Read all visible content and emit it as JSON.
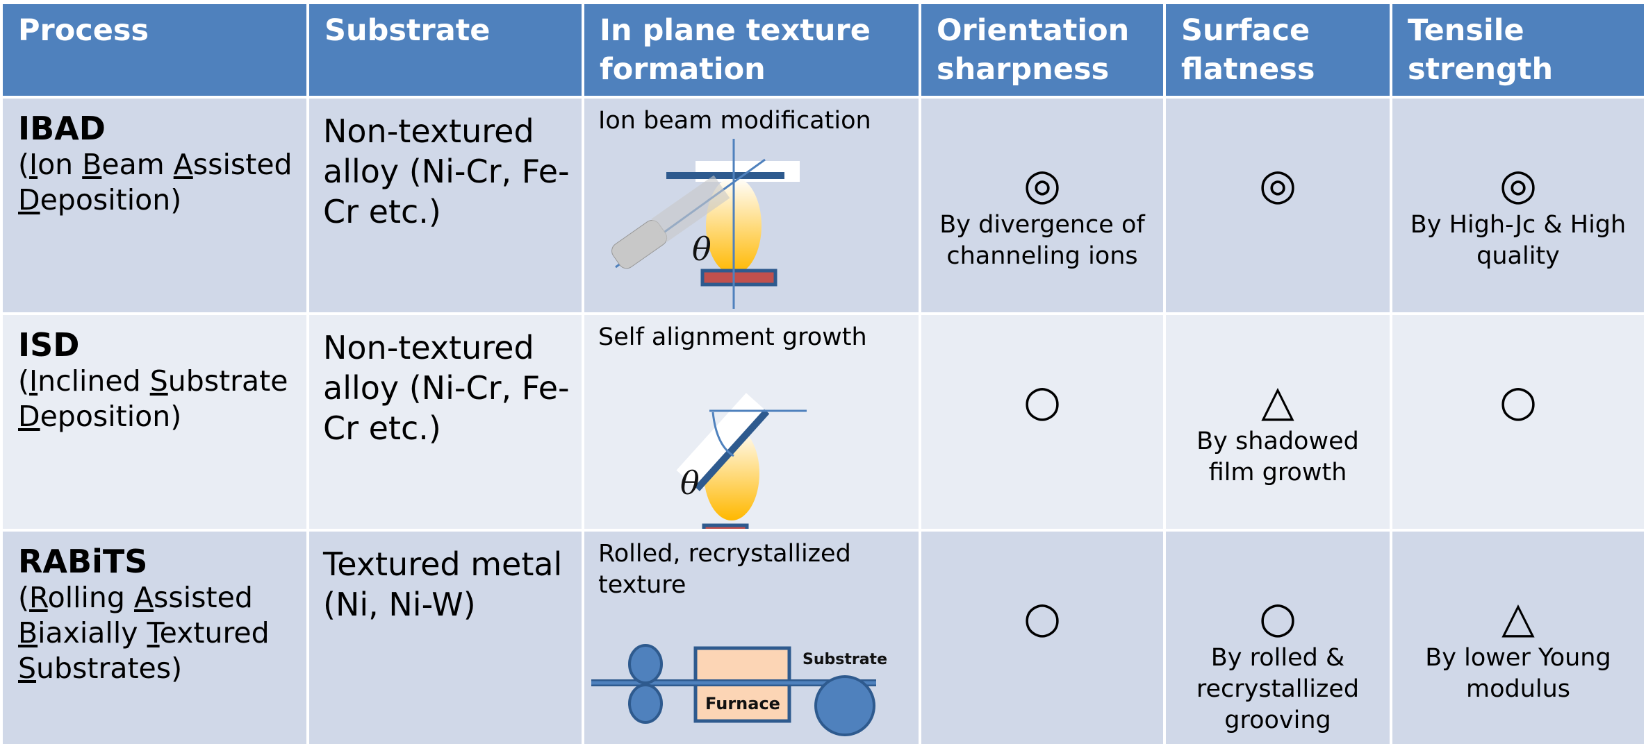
{
  "table": {
    "header": [
      "Process",
      "Substrate",
      "In plane texture formation",
      "Orientation sharpness",
      "Surface flatness",
      "Tensile strength"
    ],
    "rows": [
      {
        "process": {
          "name": "IBAD",
          "full": "(Ion Beam Assisted Deposition)"
        },
        "substrate": "Non-textured alloy (Ni-Cr, Fe-Cr etc.)",
        "formation": {
          "label": "Ion beam modification",
          "diagram_labels": [
            "θ"
          ]
        },
        "orientation": {
          "symbol": "◎",
          "note": "By divergence of channeling ions"
        },
        "flatness": {
          "symbol": "◎"
        },
        "strength": {
          "symbol": "◎",
          "note": "By High-Jc & High quality"
        }
      },
      {
        "process": {
          "name": "ISD",
          "full": "(Inclined Substrate Deposition)"
        },
        "substrate": "Non-textured alloy (Ni-Cr, Fe-Cr etc.)",
        "formation": {
          "label": "Self alignment growth",
          "diagram_labels": [
            "θ"
          ]
        },
        "orientation": {
          "symbol": "○"
        },
        "flatness": {
          "symbol": "△",
          "note": "By shadowed film growth"
        },
        "strength": {
          "symbol": "○"
        }
      },
      {
        "process": {
          "name": "RABiTS",
          "full": "(Rolling Assisted Biaxially Textured Substrates)"
        },
        "substrate": "Textured metal (Ni, Ni-W)",
        "formation": {
          "label": "Rolled, recrystallized texture",
          "diagram_labels": [
            "Furnace",
            "Substrate"
          ]
        },
        "orientation": {
          "symbol": "○"
        },
        "flatness": {
          "symbol": "○",
          "note": "By rolled & recrystallized grooving"
        },
        "strength": {
          "symbol": "△",
          "note": "By lower Young modulus"
        }
      }
    ]
  }
}
